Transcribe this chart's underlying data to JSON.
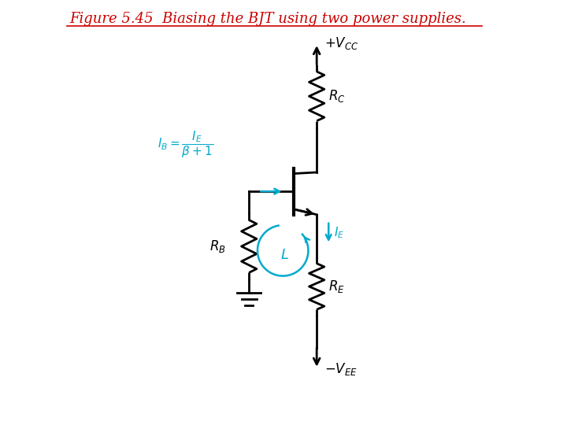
{
  "title": "Figure 5.45  Biasing the BJT using two power supplies.",
  "title_color": "#cc0000",
  "title_fontsize": 13,
  "bg_color": "#ffffff",
  "circuit_color": "#000000",
  "cyan_color": "#00aacc",
  "vcc_label": "$+V_{CC}$",
  "vee_label": "$-V_{EE}$",
  "rc_label": "$R_C$",
  "rb_label": "$R_B$",
  "re_label": "$R_E$",
  "ie_label": "$I_E$",
  "loop_label": "$L$"
}
